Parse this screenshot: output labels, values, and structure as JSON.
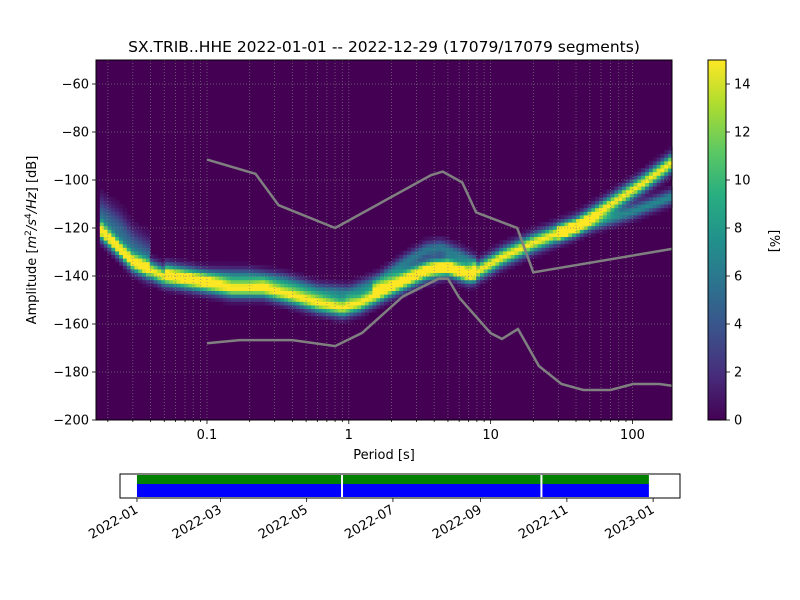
{
  "chart_data": {
    "type": "heatmap",
    "title": "SX.TRIB..HHE   2022-01-01 -- 2022-12-29  (17079/17079 segments)",
    "xlabel": "Period [s]",
    "ylabel_main": "Amplitude [",
    "ylabel_tail": "] [dB]",
    "ylabel_units": {
      "m": "m",
      "m_exp": "2",
      "s": "/s",
      "s_exp": "4",
      "hz": "/Hz"
    },
    "xscale": "log",
    "xlim": [
      0.0165,
      190
    ],
    "ylim": [
      -200,
      -50
    ],
    "x_ticks": [
      {
        "value": 0.1,
        "label": "0.1"
      },
      {
        "value": 1,
        "label": "1"
      },
      {
        "value": 10,
        "label": "10"
      },
      {
        "value": 100,
        "label": "100"
      }
    ],
    "y_ticks": [
      {
        "value": -60,
        "label": "−60"
      },
      {
        "value": -80,
        "label": "−80"
      },
      {
        "value": -100,
        "label": "−100"
      },
      {
        "value": -120,
        "label": "−120"
      },
      {
        "value": -140,
        "label": "−140"
      },
      {
        "value": -160,
        "label": "−160"
      },
      {
        "value": -180,
        "label": "−180"
      },
      {
        "value": -200,
        "label": "−200"
      }
    ],
    "grid": true,
    "colorbar": {
      "label": "[%]",
      "range": [
        0,
        15
      ],
      "ticks": [
        {
          "value": 0,
          "label": "0"
        },
        {
          "value": 2,
          "label": "2"
        },
        {
          "value": 4,
          "label": "4"
        },
        {
          "value": 6,
          "label": "6"
        },
        {
          "value": 8,
          "label": "8"
        },
        {
          "value": 10,
          "label": "10"
        },
        {
          "value": 12,
          "label": "12"
        },
        {
          "value": 14,
          "label": "14"
        }
      ],
      "colormap": "viridis"
    },
    "density_modes": [
      {
        "name": "main",
        "points": [
          [
            0.018,
            -121
          ],
          [
            0.03,
            -134
          ],
          [
            0.05,
            -140
          ],
          [
            0.1,
            -143
          ],
          [
            0.15,
            -145
          ],
          [
            0.25,
            -145
          ],
          [
            0.4,
            -148
          ],
          [
            0.6,
            -151
          ],
          [
            0.9,
            -153
          ],
          [
            1.2,
            -151
          ],
          [
            1.8,
            -146
          ],
          [
            2.5,
            -142
          ],
          [
            3.5,
            -138
          ],
          [
            5,
            -136
          ],
          [
            7,
            -139
          ],
          [
            8,
            -138
          ],
          [
            12,
            -132
          ],
          [
            20,
            -126
          ],
          [
            40,
            -119
          ],
          [
            70,
            -110
          ],
          [
            120,
            -101
          ],
          [
            185,
            -93
          ]
        ],
        "width": 2.5,
        "peak": 15
      },
      {
        "name": "upper",
        "points": [
          [
            0.05,
            -137
          ],
          [
            0.1,
            -140
          ],
          [
            0.2,
            -140
          ],
          [
            0.35,
            -142
          ],
          [
            0.6,
            -146
          ],
          [
            1,
            -147
          ],
          [
            1.6,
            -142
          ],
          [
            2.5,
            -134
          ],
          [
            3.5,
            -129
          ],
          [
            4.5,
            -128
          ],
          [
            6,
            -131
          ],
          [
            8,
            -135
          ]
        ],
        "width": 2.2,
        "peak": 6
      },
      {
        "name": "middle",
        "points": [
          [
            1.5,
            -145
          ],
          [
            2.5,
            -139
          ],
          [
            4,
            -135
          ],
          [
            6,
            -138
          ],
          [
            8,
            -140
          ]
        ],
        "width": 2.0,
        "peak": 5
      },
      {
        "name": "long-period-branch",
        "points": [
          [
            30,
            -122
          ],
          [
            60,
            -117
          ],
          [
            100,
            -113
          ],
          [
            185,
            -107
          ]
        ],
        "width": 2.0,
        "peak": 7
      },
      {
        "name": "short-period-spread",
        "points": [
          [
            0.018,
            -115
          ],
          [
            0.025,
            -122
          ],
          [
            0.03,
            -128
          ],
          [
            0.04,
            -133
          ]
        ],
        "width": 5,
        "peak": 5
      }
    ],
    "noise_models": [
      {
        "name": "NHNM",
        "points": [
          [
            0.1,
            -91.5
          ],
          [
            0.22,
            -97.4
          ],
          [
            0.32,
            -110.5
          ],
          [
            0.8,
            -120
          ],
          [
            3.8,
            -98
          ],
          [
            4.6,
            -96.5
          ],
          [
            6.3,
            -101
          ],
          [
            7.9,
            -113.5
          ],
          [
            15.4,
            -120
          ],
          [
            20,
            -138.5
          ],
          [
            354.8,
            -126
          ]
        ]
      },
      {
        "name": "NLNM",
        "points": [
          [
            0.1,
            -168
          ],
          [
            0.17,
            -166.7
          ],
          [
            0.4,
            -166.7
          ],
          [
            0.8,
            -169.2
          ],
          [
            1.24,
            -163.7
          ],
          [
            2.4,
            -148.6
          ],
          [
            4.3,
            -141.1
          ],
          [
            5,
            -141.1
          ],
          [
            6,
            -149
          ],
          [
            10,
            -163.8
          ],
          [
            12,
            -166.2
          ],
          [
            15.6,
            -162.1
          ],
          [
            21.9,
            -177.5
          ],
          [
            31.6,
            -185
          ],
          [
            45,
            -187.5
          ],
          [
            70,
            -187.5
          ],
          [
            101,
            -185
          ],
          [
            154,
            -185
          ],
          [
            328,
            -187.5
          ]
        ]
      }
    ]
  },
  "coverage": {
    "start_date": "2022-01-01",
    "end_date": "2022-12-29",
    "axis_start": "2021-12-20",
    "axis_end": "2023-01-20",
    "gaps": [
      "2022-05-26",
      "2022-10-14"
    ],
    "data_color": "#0000ff",
    "processed_color": "#008000",
    "ticks": [
      "2022-01",
      "2022-03",
      "2022-05",
      "2022-07",
      "2022-09",
      "2022-11",
      "2023-01"
    ]
  }
}
